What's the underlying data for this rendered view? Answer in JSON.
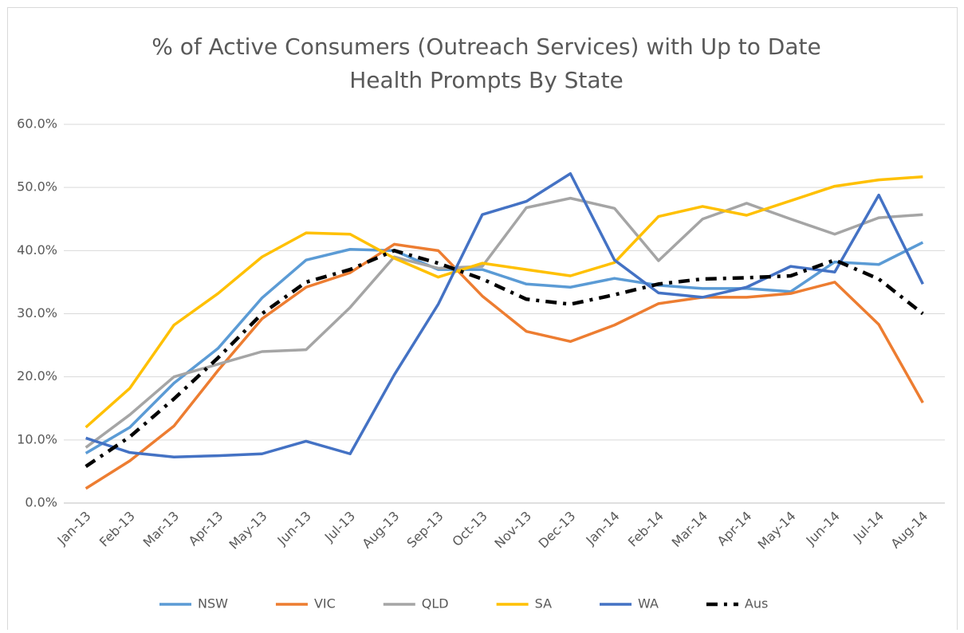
{
  "chart_data": {
    "type": "line",
    "title": [
      "% of Active Consumers (Outreach Services)  with Up to Date",
      "Health Prompts By State"
    ],
    "categories": [
      "Jan-13",
      "Feb-13",
      "Mar-13",
      "Apr-13",
      "May-13",
      "Jun-13",
      "Jul-13",
      "Aug-13",
      "Sep-13",
      "Oct-13",
      "Nov-13",
      "Dec-13",
      "Jan-14",
      "Feb-14",
      "Mar-14",
      "Apr-14",
      "May-14",
      "Jun-14",
      "Jul-14",
      "Aug-14"
    ],
    "series": [
      {
        "name": "NSW",
        "color": "#5b9bd5",
        "values": [
          7.9,
          12,
          19,
          24.5,
          32.5,
          38.5,
          40.2,
          40,
          37,
          37,
          34.7,
          34.2,
          35.6,
          34.5,
          34,
          34,
          33.5,
          38.2,
          37.8,
          41.3
        ]
      },
      {
        "name": "VIC",
        "color": "#ed7d31",
        "values": [
          2.3,
          6.7,
          12.2,
          21,
          29.2,
          34.2,
          36.5,
          41,
          40,
          32.8,
          27.2,
          25.6,
          28.2,
          31.6,
          32.6,
          32.6,
          33.2,
          35,
          28.3,
          15.9
        ]
      },
      {
        "name": "QLD",
        "color": "#a5a5a5",
        "values": [
          8.8,
          14,
          20,
          22,
          24,
          24.3,
          31,
          39,
          37.2,
          37.5,
          46.8,
          48.3,
          46.7,
          38.4,
          45,
          47.5,
          45,
          42.6,
          45.2,
          45.7
        ]
      },
      {
        "name": "SA",
        "color": "#ffc000",
        "values": [
          12,
          18.2,
          28.2,
          33.2,
          39,
          42.8,
          42.6,
          38.8,
          35.8,
          38,
          37,
          36,
          38.1,
          45.4,
          47,
          45.6,
          47.9,
          50.2,
          51.2,
          51.7
        ]
      },
      {
        "name": "WA",
        "color": "#4472c4",
        "values": [
          10.3,
          8,
          7.3,
          7.5,
          7.8,
          9.8,
          7.8,
          20.3,
          31.5,
          45.7,
          47.8,
          52.2,
          38.5,
          33.3,
          32.6,
          34.2,
          37.5,
          36.6,
          48.8,
          34.7
        ]
      },
      {
        "name": "Aus",
        "color": "#000000",
        "dash": true,
        "values": [
          5.8,
          10.5,
          16.5,
          23,
          30,
          35,
          37,
          40,
          38,
          35.5,
          32.3,
          31.5,
          33,
          34.7,
          35.5,
          35.7,
          36,
          38.5,
          35.5,
          30
        ]
      }
    ],
    "ylim": [
      0,
      60
    ],
    "yticks": [
      {
        "value": 0,
        "label": "0.0%"
      },
      {
        "value": 10,
        "label": "10.0%"
      },
      {
        "value": 20,
        "label": "20.0%"
      },
      {
        "value": 30,
        "label": "30.0%"
      },
      {
        "value": 40,
        "label": "40.0%"
      },
      {
        "value": 50,
        "label": "50.0%"
      },
      {
        "value": 60,
        "label": "60.0%"
      }
    ],
    "grid": true,
    "legend": "bottom"
  }
}
